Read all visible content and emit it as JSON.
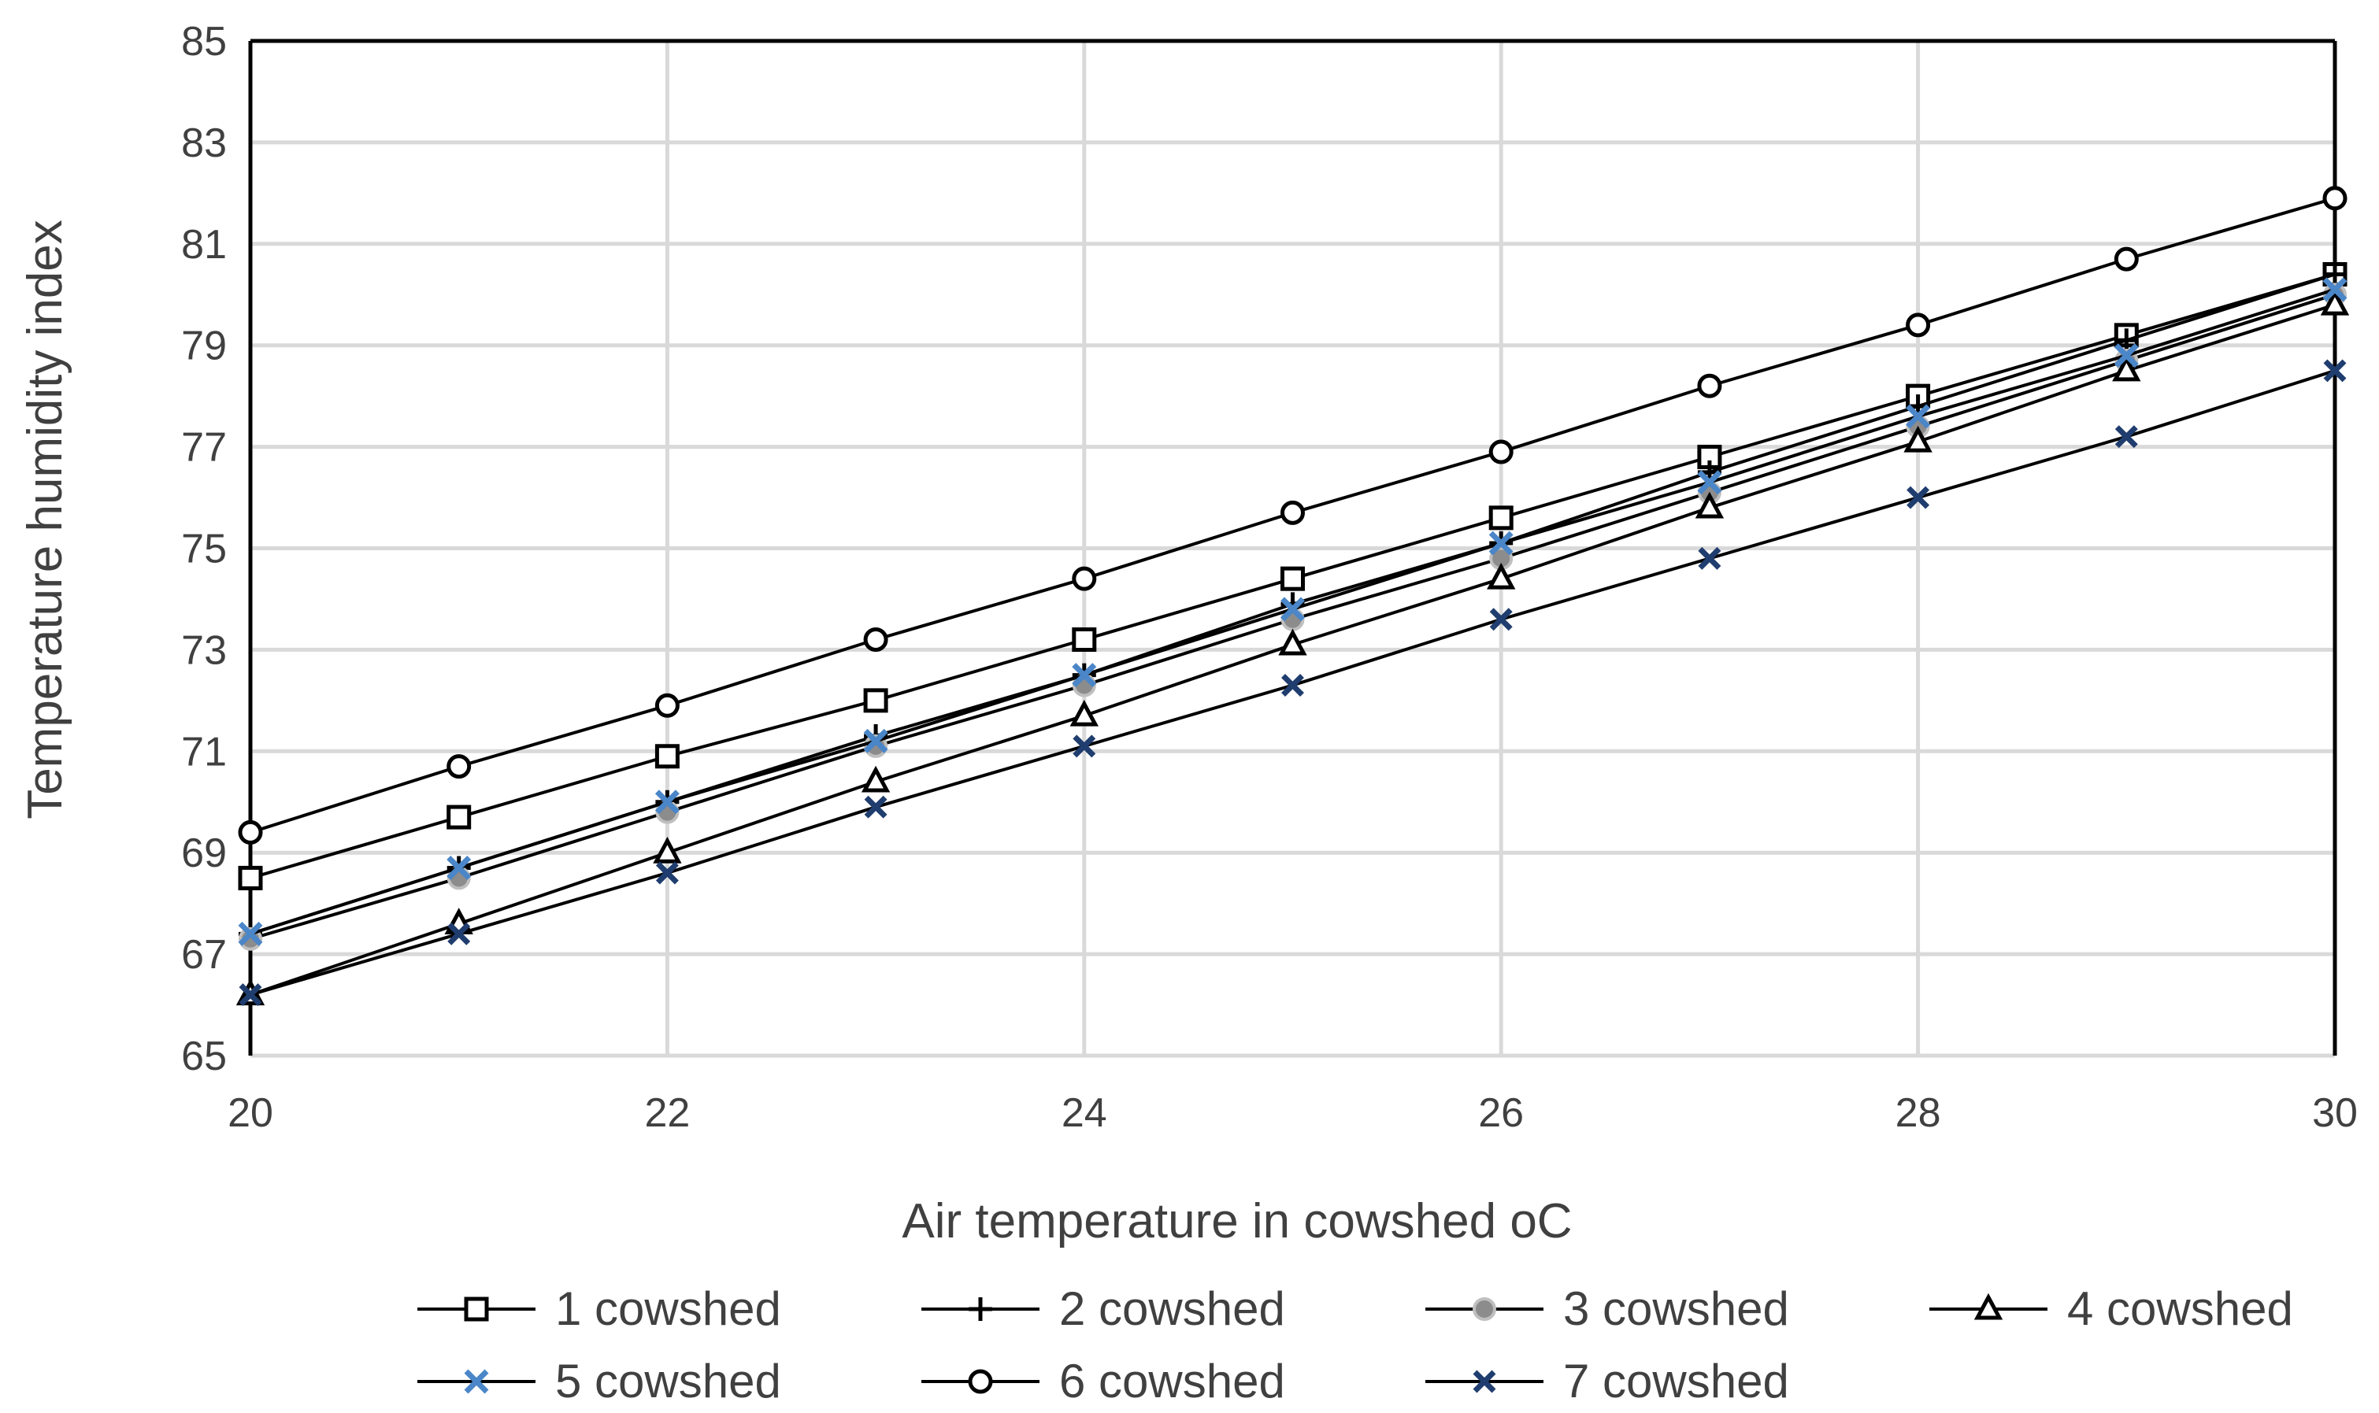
{
  "chart_data": {
    "type": "line",
    "title": "",
    "xlabel": "Air temperature in cowshed oC",
    "ylabel": "Temperature humidity index",
    "xlim": [
      20,
      30
    ],
    "ylim": [
      65,
      85
    ],
    "x_ticks": [
      20,
      22,
      24,
      26,
      28,
      30
    ],
    "y_ticks": [
      65,
      67,
      69,
      71,
      73,
      75,
      77,
      79,
      81,
      83,
      85
    ],
    "grid": true,
    "legend_position": "bottom",
    "x": [
      20,
      21,
      22,
      23,
      24,
      25,
      26,
      27,
      28,
      29,
      30
    ],
    "series": [
      {
        "name": "1 cowshed",
        "marker": "square",
        "color": "#000000",
        "values": [
          68.5,
          69.7,
          70.9,
          72.0,
          73.2,
          74.4,
          75.6,
          76.8,
          78.0,
          79.2,
          80.4
        ]
      },
      {
        "name": "2 cowshed",
        "marker": "plus",
        "color": "#000000",
        "values": [
          67.4,
          68.7,
          70.0,
          71.3,
          72.5,
          73.9,
          75.1,
          76.5,
          77.8,
          79.1,
          80.4
        ]
      },
      {
        "name": "3 cowshed",
        "marker": "gray-circle",
        "color": "#000000",
        "values": [
          67.3,
          68.5,
          69.8,
          71.1,
          72.3,
          73.6,
          74.8,
          76.1,
          77.4,
          78.7,
          80.0
        ]
      },
      {
        "name": "4 cowshed",
        "marker": "triangle",
        "color": "#000000",
        "values": [
          66.2,
          67.6,
          69.0,
          70.4,
          71.7,
          73.1,
          74.4,
          75.8,
          77.1,
          78.5,
          79.8
        ]
      },
      {
        "name": "5 cowshed",
        "marker": "x-light",
        "color": "#4a86c8",
        "values": [
          67.4,
          68.7,
          70.0,
          71.2,
          72.5,
          73.8,
          75.1,
          76.3,
          77.6,
          78.8,
          80.1
        ]
      },
      {
        "name": "6 cowshed",
        "marker": "circle",
        "color": "#000000",
        "values": [
          69.4,
          70.7,
          71.9,
          73.2,
          74.4,
          75.7,
          76.9,
          78.2,
          79.4,
          80.7,
          81.9
        ]
      },
      {
        "name": "7 cowshed",
        "marker": "x-dark",
        "color": "#1f3d6e",
        "values": [
          66.2,
          67.4,
          68.6,
          69.9,
          71.1,
          72.3,
          73.6,
          74.8,
          76.0,
          77.2,
          78.5
        ]
      }
    ]
  }
}
